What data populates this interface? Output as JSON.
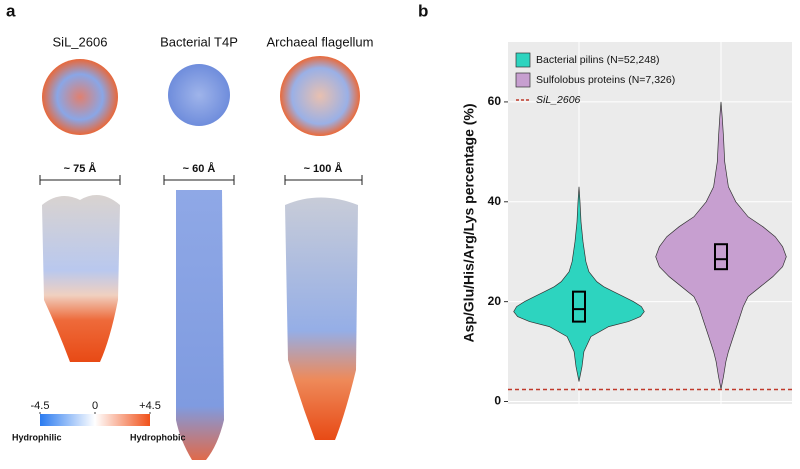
{
  "panel_a": {
    "label": "a",
    "columns": [
      "SiL_2606",
      "Bacterial T4P",
      "Archaeal flagellum"
    ],
    "widths": [
      "~ 75 Å",
      "~ 60 Å",
      "~ 100 Å"
    ],
    "colorbar": {
      "lim": [
        -4.5,
        4.5
      ],
      "ticks": [
        -4.5,
        0,
        {
          "value": 4.5,
          "label": "+4.5"
        }
      ],
      "low_label": "Hydrophilic",
      "high_label": "Hydrophobic"
    }
  },
  "chart_data": {
    "type": "violin",
    "label": "b",
    "ylabel": "Asp/Glu/His/Arg/Lys percentage (%)",
    "ylim": [
      -0.5,
      72
    ],
    "yticks": [
      0,
      20,
      40,
      60
    ],
    "grid": true,
    "legend": "top-left",
    "series": [
      {
        "name": "Bacterial pilins (N=52,248)",
        "color": "#2dd4bf",
        "y": [
          4,
          7,
          10,
          13,
          15,
          16,
          17,
          18,
          19,
          20,
          21,
          22,
          23,
          24,
          26,
          28,
          32,
          36,
          40,
          43
        ],
        "density": [
          0,
          3,
          5,
          12,
          30,
          50,
          62,
          66,
          63,
          55,
          45,
          35,
          25,
          18,
          10,
          7,
          4,
          2,
          1,
          0
        ],
        "q1": 16,
        "median": 18.5,
        "q3": 22
      },
      {
        "name": "Sulfolobus proteins (N=7,326)",
        "color": "#c79fd0",
        "y": [
          2.5,
          5,
          8,
          10,
          13,
          16,
          19,
          21,
          23,
          25,
          27,
          29,
          31,
          33,
          35,
          37,
          40,
          43,
          48,
          53,
          57,
          60
        ],
        "density": [
          0,
          2,
          4,
          6,
          10,
          14,
          18,
          22,
          32,
          42,
          50,
          53,
          50,
          44,
          34,
          22,
          12,
          6,
          3,
          2,
          1,
          0
        ],
        "q1": 26.5,
        "median": 28.5,
        "q3": 31.5
      }
    ],
    "reference_line": {
      "name": "SiL_2606",
      "value": 2.4,
      "color": "#c0392b"
    }
  }
}
